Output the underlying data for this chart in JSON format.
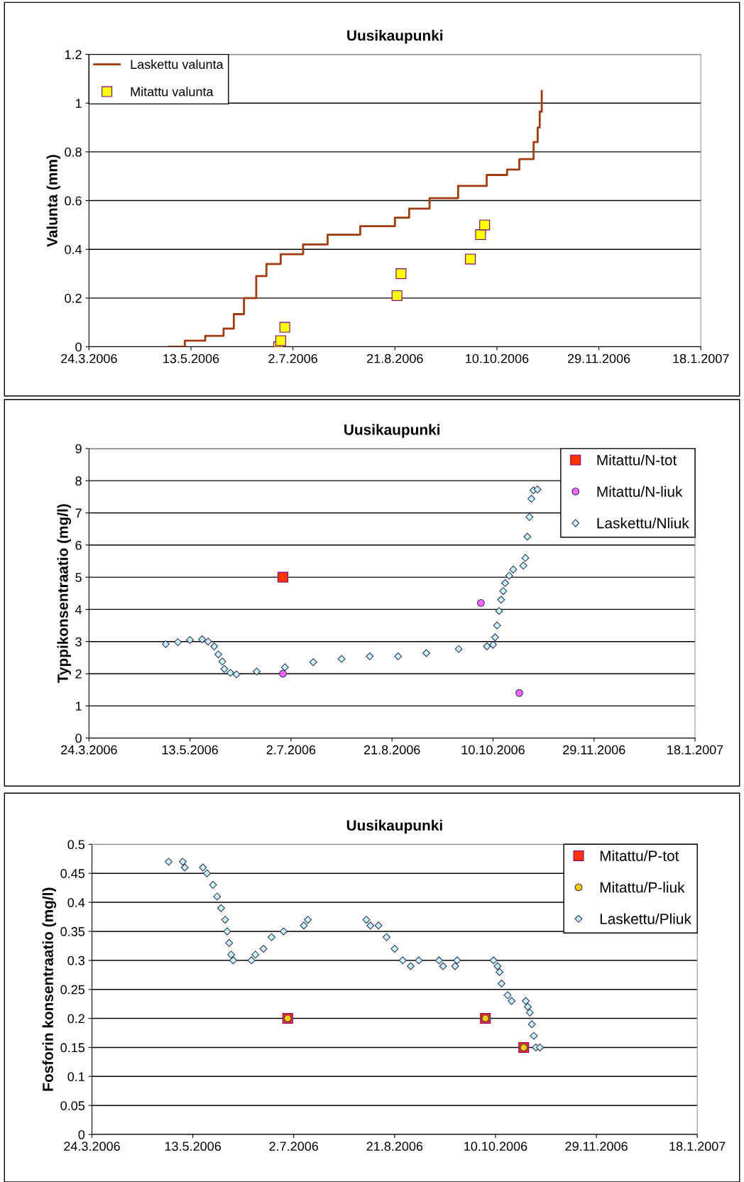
{
  "chart_data": [
    {
      "type": "line",
      "title": "Uusikaupunki",
      "ylabel": "Valunta (mm)",
      "xlim": [
        "2006-03-24",
        "2007-01-18"
      ],
      "xticks": [
        {
          "value": "2006-03-24",
          "label": "24.3.2006"
        },
        {
          "value": "2006-05-13",
          "label": "13.5.2006"
        },
        {
          "value": "2006-07-02",
          "label": "2.7.2006"
        },
        {
          "value": "2006-08-21",
          "label": "21.8.2006"
        },
        {
          "value": "2006-10-10",
          "label": "10.10.2006"
        },
        {
          "value": "2006-11-29",
          "label": "29.11.2006"
        },
        {
          "value": "2007-01-18",
          "label": "18.1.2007"
        }
      ],
      "ylim": [
        0,
        1.2
      ],
      "yticks": [
        0,
        0.2,
        0.4,
        0.6,
        0.8,
        1,
        1.2
      ],
      "grid": "y",
      "legend": "top left",
      "series": [
        {
          "name": "Laskettu valunta",
          "type": "step",
          "color": "#a33b0c",
          "marker": "none",
          "x": [
            "2006-05-02",
            "2006-05-10",
            "2006-05-20",
            "2006-05-29",
            "2006-06-03",
            "2006-06-08",
            "2006-06-14",
            "2006-06-19",
            "2006-06-26",
            "2006-07-07",
            "2006-07-19",
            "2006-08-04",
            "2006-08-21",
            "2006-08-28",
            "2006-09-07",
            "2006-09-21",
            "2006-10-05",
            "2006-10-15",
            "2006-10-21",
            "2006-10-28",
            "2006-10-30",
            "2006-10-31",
            "2006-11-01"
          ],
          "values": [
            0,
            0.025,
            0.045,
            0.075,
            0.134,
            0.2,
            0.29,
            0.34,
            0.38,
            0.42,
            0.46,
            0.495,
            0.53,
            0.567,
            0.61,
            0.66,
            0.705,
            0.727,
            0.77,
            0.84,
            0.9,
            0.965,
            1.05
          ]
        },
        {
          "name": "Mitattu valunta",
          "type": "scatter",
          "color": "#ffff00",
          "marker": "square",
          "x": [
            "2006-06-25",
            "2006-06-26",
            "2006-06-28",
            "2006-08-22",
            "2006-08-24",
            "2006-09-27",
            "2006-10-02",
            "2006-10-04"
          ],
          "values": [
            0,
            0.025,
            0.08,
            0.21,
            0.3,
            0.36,
            0.46,
            0.5
          ]
        }
      ]
    },
    {
      "type": "scatter",
      "title": "Uusikaupunki",
      "ylabel": "Typpikonsentraatio (mg/l)",
      "xlim": [
        "2006-03-24",
        "2007-01-18"
      ],
      "xticks": [
        {
          "value": "2006-03-24",
          "label": "24.3.2006"
        },
        {
          "value": "2006-05-13",
          "label": "13.5.2006"
        },
        {
          "value": "2006-07-02",
          "label": "2.7.2006"
        },
        {
          "value": "2006-08-21",
          "label": "21.8.2006"
        },
        {
          "value": "2006-10-10",
          "label": "10.10.2006"
        },
        {
          "value": "2006-11-29",
          "label": "29.11.2006"
        },
        {
          "value": "2007-01-18",
          "label": "18.1.2007"
        }
      ],
      "ylim": [
        0,
        9
      ],
      "yticks": [
        0,
        1,
        2,
        3,
        4,
        5,
        6,
        7,
        8,
        9
      ],
      "grid": "y",
      "legend": "top right",
      "series": [
        {
          "name": "Mitattu/N-tot",
          "color": "#ff3300",
          "marker": "square",
          "x": [
            "2006-06-28"
          ],
          "values": [
            5.0
          ]
        },
        {
          "name": "Mitattu/N-liuk",
          "color": "#ff66ff",
          "marker": "circle",
          "x": [
            "2006-06-28",
            "2006-10-04",
            "2006-10-23"
          ],
          "values": [
            2.0,
            4.2,
            1.4
          ]
        },
        {
          "name": "Laskettu/Nliuk",
          "color": "#ccffff",
          "marker": "diamond",
          "x": [
            "2006-05-01",
            "2006-05-07",
            "2006-05-13",
            "2006-05-19",
            "2006-05-22",
            "2006-05-25",
            "2006-05-27",
            "2006-05-29",
            "2006-05-30",
            "2006-06-02",
            "2006-06-05",
            "2006-06-15",
            "2006-06-29",
            "2006-07-13",
            "2006-07-27",
            "2006-08-10",
            "2006-08-24",
            "2006-09-07",
            "2006-09-23",
            "2006-10-07",
            "2006-10-10",
            "2006-10-11",
            "2006-10-12",
            "2006-10-13",
            "2006-10-14",
            "2006-10-15",
            "2006-10-16",
            "2006-10-18",
            "2006-10-20",
            "2006-10-25",
            "2006-10-26",
            "2006-10-27",
            "2006-10-28",
            "2006-10-29",
            "2006-10-30",
            "2006-11-01"
          ],
          "values": [
            2.92,
            2.98,
            3.05,
            3.07,
            3.0,
            2.85,
            2.6,
            2.38,
            2.15,
            2.03,
            1.98,
            2.07,
            2.2,
            2.36,
            2.46,
            2.54,
            2.54,
            2.64,
            2.77,
            2.85,
            2.9,
            3.13,
            3.5,
            3.95,
            4.3,
            4.57,
            4.82,
            5.05,
            5.24,
            5.36,
            5.6,
            6.26,
            6.87,
            7.44,
            7.7,
            7.73
          ]
        }
      ]
    },
    {
      "type": "scatter",
      "title": "Uusikaupunki",
      "ylabel": "Fosforin konsentraatio (mg/l)",
      "xlim": [
        "2006-03-24",
        "2007-01-18"
      ],
      "xticks": [
        {
          "value": "2006-03-24",
          "label": "24.3.2006"
        },
        {
          "value": "2006-05-13",
          "label": "13.5.2006"
        },
        {
          "value": "2006-07-02",
          "label": "2.7.2006"
        },
        {
          "value": "2006-08-21",
          "label": "21.8.2006"
        },
        {
          "value": "2006-10-10",
          "label": "10.10.2006"
        },
        {
          "value": "2006-11-29",
          "label": "29.11.2006"
        },
        {
          "value": "2007-01-18",
          "label": "18.1.2007"
        }
      ],
      "ylim": [
        0,
        0.5
      ],
      "yticks": [
        0,
        0.05,
        0.1,
        0.15,
        0.2,
        0.25,
        0.3,
        0.35,
        0.4,
        0.45,
        0.5
      ],
      "grid": "y",
      "legend": "top right",
      "series": [
        {
          "name": "Mitattu/P-tot",
          "color": "#ff3300",
          "marker": "square",
          "x": [
            "2006-06-29",
            "2006-10-05",
            "2006-10-24"
          ],
          "values": [
            0.2,
            0.2,
            0.15
          ]
        },
        {
          "name": "Mitattu/P-liuk",
          "color": "#ffcc00",
          "marker": "circle",
          "x": [
            "2006-06-29",
            "2006-10-05",
            "2006-10-24"
          ],
          "values": [
            0.2,
            0.2,
            0.15
          ]
        },
        {
          "name": "Laskettu/Pliuk",
          "color": "#ccffff",
          "marker": "diamond",
          "x": [
            "2006-05-01",
            "2006-05-08",
            "2006-05-09",
            "2006-05-18",
            "2006-05-20",
            "2006-05-23",
            "2006-05-25",
            "2006-05-27",
            "2006-05-29",
            "2006-05-30",
            "2006-05-31",
            "2006-06-01",
            "2006-06-02",
            "2006-06-11",
            "2006-06-13",
            "2006-06-17",
            "2006-06-21",
            "2006-06-27",
            "2006-07-07",
            "2006-07-09",
            "2006-08-07",
            "2006-08-09",
            "2006-08-13",
            "2006-08-17",
            "2006-08-21",
            "2006-08-25",
            "2006-08-29",
            "2006-09-02",
            "2006-09-12",
            "2006-09-14",
            "2006-09-20",
            "2006-09-21",
            "2006-10-09",
            "2006-10-11",
            "2006-10-12",
            "2006-10-13",
            "2006-10-16",
            "2006-10-18",
            "2006-10-25",
            "2006-10-26",
            "2006-10-27",
            "2006-10-28",
            "2006-10-29",
            "2006-10-30",
            "2006-11-01"
          ],
          "values": [
            0.47,
            0.47,
            0.46,
            0.46,
            0.45,
            0.43,
            0.41,
            0.39,
            0.37,
            0.35,
            0.33,
            0.31,
            0.3,
            0.3,
            0.31,
            0.32,
            0.34,
            0.35,
            0.36,
            0.37,
            0.37,
            0.36,
            0.36,
            0.34,
            0.32,
            0.3,
            0.29,
            0.3,
            0.3,
            0.29,
            0.29,
            0.3,
            0.3,
            0.29,
            0.28,
            0.26,
            0.24,
            0.23,
            0.23,
            0.22,
            0.21,
            0.19,
            0.17,
            0.15,
            0.15
          ]
        }
      ]
    }
  ]
}
